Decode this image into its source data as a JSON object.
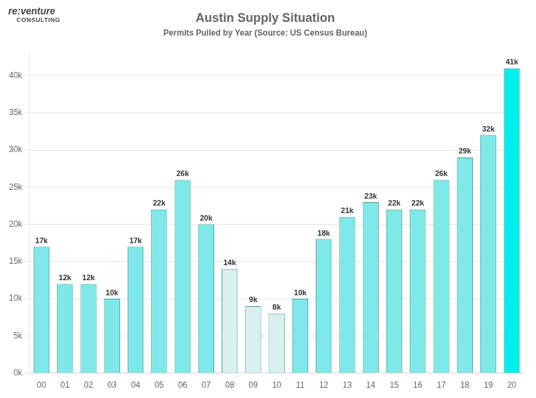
{
  "chart_data": {
    "type": "bar",
    "title": "Austin Supply Situation",
    "subtitle": "Permits Pulled by Year (Source: US Census Bureau)",
    "annotations": [
      "re:venture",
      "CONSULTING"
    ],
    "categories": [
      "00",
      "01",
      "02",
      "03",
      "04",
      "05",
      "06",
      "07",
      "08",
      "09",
      "10",
      "11",
      "12",
      "13",
      "14",
      "15",
      "16",
      "17",
      "18",
      "19",
      "20"
    ],
    "values": [
      17000,
      12000,
      12000,
      10000,
      17000,
      22000,
      26000,
      20000,
      14000,
      9000,
      8000,
      10000,
      18000,
      21000,
      23000,
      22000,
      22000,
      26000,
      29000,
      32000,
      41000
    ],
    "value_labels": [
      "17k",
      "12k",
      "12k",
      "10k",
      "17k",
      "22k",
      "26k",
      "20k",
      "14k",
      "9k",
      "8k",
      "10k",
      "18k",
      "21k",
      "23k",
      "22k",
      "22k",
      "26k",
      "29k",
      "32k",
      "41k"
    ],
    "colors": [
      "#7FE8E8",
      "#7FE8E8",
      "#7FE8E8",
      "#7FE8E8",
      "#7FE8E8",
      "#7FE8E8",
      "#7FE8E8",
      "#7FE8E8",
      "#D8F0F0",
      "#D8F0F0",
      "#D8F0F0",
      "#7FE8E8",
      "#7FE8E8",
      "#7FE8E8",
      "#7FE8E8",
      "#7FE8E8",
      "#7FE8E8",
      "#7FE8E8",
      "#7FE8E8",
      "#7FE8E8",
      "#00EFEF"
    ],
    "ylim": [
      0,
      43000
    ],
    "yticks": [
      {
        "value": 0,
        "label": "0k"
      },
      {
        "value": 5000,
        "label": "5k"
      },
      {
        "value": 10000,
        "label": "10k"
      },
      {
        "value": 15000,
        "label": "15k"
      },
      {
        "value": 20000,
        "label": "20k"
      },
      {
        "value": 25000,
        "label": "25k"
      },
      {
        "value": 30000,
        "label": "30k"
      },
      {
        "value": 35000,
        "label": "35k"
      },
      {
        "value": 40000,
        "label": "40k"
      }
    ],
    "grid": true,
    "data_labels": true
  }
}
